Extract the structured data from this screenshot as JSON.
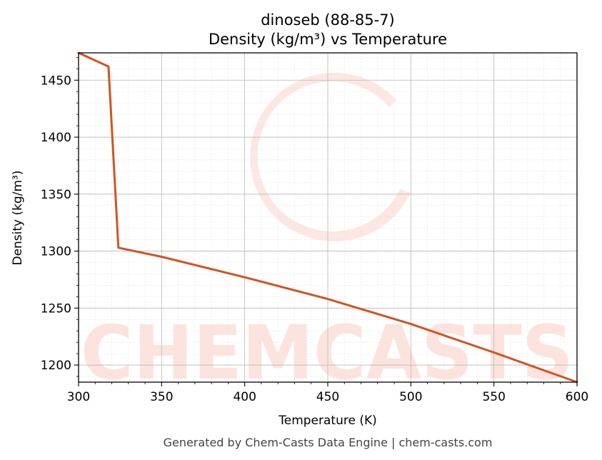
{
  "chart_data": {
    "type": "line",
    "title_line1": "dinoseb (88-85-7)",
    "title_line2": "Density (kg/m³) vs Temperature",
    "xlabel": "Temperature (K)",
    "ylabel": "Density (kg/m³)",
    "xlim": [
      300,
      600
    ],
    "ylim": [
      1185,
      1474
    ],
    "xticks": [
      300,
      350,
      400,
      450,
      500,
      550,
      600
    ],
    "yticks": [
      1200,
      1250,
      1300,
      1350,
      1400,
      1450
    ],
    "grid": true,
    "series": [
      {
        "color": "#d4531f",
        "points": [
          [
            300,
            1474
          ],
          [
            318,
            1462
          ],
          [
            324,
            1303
          ],
          [
            350,
            1295
          ],
          [
            400,
            1277
          ],
          [
            450,
            1258
          ],
          [
            500,
            1236
          ],
          [
            550,
            1211
          ],
          [
            600,
            1185
          ]
        ]
      }
    ]
  },
  "watermark": {
    "text": "CHEMCASTS",
    "color": "#fde3dd"
  },
  "footer": "Generated by Chem-Casts Data Engine | chem-casts.com"
}
